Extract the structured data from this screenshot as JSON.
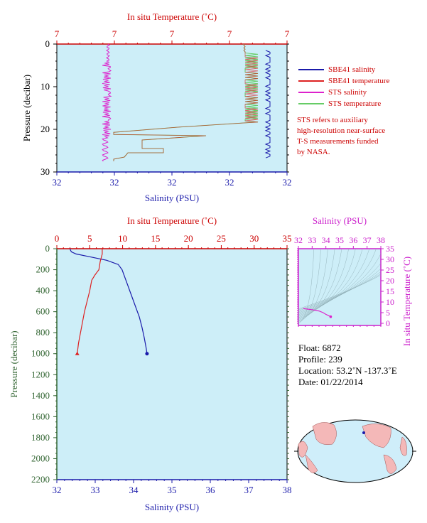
{
  "top_chart": {
    "top_axis_label": "In situ Temperature (˚C)",
    "top_ticks": [
      "7",
      "7",
      "7",
      "7",
      "7"
    ],
    "left_axis_label": "Pressure (decibar)",
    "left_ticks": [
      "0",
      "10",
      "20",
      "30"
    ],
    "bottom_axis_label": "Salinity (PSU)",
    "bottom_ticks": [
      "32",
      "32",
      "32",
      "32",
      "32"
    ]
  },
  "legend": {
    "items": [
      {
        "label": "SBE41 salinity",
        "color": "#1a1aaa"
      },
      {
        "label": "SBE41 temperature",
        "color": "#dd2222"
      },
      {
        "label": "STS salinity",
        "color": "#dd22cc"
      },
      {
        "label": "STS temperature",
        "color": "#66cc66"
      }
    ],
    "note_lines": [
      "STS refers to auxiliary",
      "high-resolution near-surface",
      "T-S measurements funded",
      "by NASA."
    ]
  },
  "main_chart": {
    "top_axis_label": "In situ Temperature (˚C)",
    "top_ticks": [
      "0",
      "5",
      "10",
      "15",
      "20",
      "25",
      "30",
      "35"
    ],
    "left_axis_label": "Pressure (decibar)",
    "left_ticks": [
      "0",
      "200",
      "400",
      "600",
      "800",
      "1000",
      "1200",
      "1400",
      "1600",
      "1800",
      "2000",
      "2200"
    ],
    "bottom_axis_label": "Salinity (PSU)",
    "bottom_ticks": [
      "32",
      "33",
      "34",
      "35",
      "36",
      "37",
      "38"
    ]
  },
  "ts_chart": {
    "top_axis_label": "Salinity (PSU)",
    "top_ticks": [
      "32",
      "33",
      "34",
      "35",
      "36",
      "37",
      "38"
    ],
    "right_axis_label": "In situ Temperature (˚C)",
    "right_ticks": [
      "0",
      "5",
      "10",
      "15",
      "20",
      "25",
      "30",
      "35"
    ]
  },
  "info": {
    "float": "Float:  6872",
    "profile": "Profile:  239",
    "location": "Location:  53.2˚N  -137.3˚E",
    "date": "Date:  01/22/2014"
  },
  "colors": {
    "plot_bg": "#cdeef8",
    "salinity": "#1a1aaa",
    "temperature": "#dd2222",
    "sts_salinity": "#dd22cc",
    "sts_temperature": "#66cc66",
    "axis_red": "#cc0000",
    "axis_blue": "#1a1aaa",
    "axis_green": "#336633",
    "axis_magenta": "#cc22cc"
  },
  "chart_data": [
    {
      "type": "line",
      "title": "",
      "xlabel": "Salinity (PSU)",
      "ylabel": "Pressure (decibar)",
      "x2label": "In situ Temperature (˚C)",
      "xlim": [
        32,
        38
      ],
      "x2lim": [
        0,
        35
      ],
      "ylim": [
        2200,
        0
      ],
      "series": [
        {
          "name": "salinity",
          "axis": "bottom",
          "color": "#1a1aaa",
          "points": [
            [
              32.35,
              0
            ],
            [
              32.35,
              10
            ],
            [
              32.38,
              30
            ],
            [
              32.5,
              50
            ],
            [
              32.9,
              80
            ],
            [
              33.3,
              110
            ],
            [
              33.6,
              150
            ],
            [
              33.7,
              200
            ],
            [
              33.75,
              250
            ],
            [
              33.85,
              350
            ],
            [
              33.95,
              450
            ],
            [
              34.05,
              550
            ],
            [
              34.15,
              650
            ],
            [
              34.22,
              750
            ],
            [
              34.28,
              850
            ],
            [
              34.33,
              950
            ],
            [
              34.35,
              1000
            ]
          ],
          "end_marker": "circle"
        },
        {
          "name": "temperature",
          "axis": "top",
          "color": "#dd2222",
          "points": [
            [
              6.9,
              0
            ],
            [
              6.9,
              50
            ],
            [
              6.6,
              120
            ],
            [
              6.4,
              200
            ],
            [
              5.8,
              250
            ],
            [
              5.3,
              300
            ],
            [
              5.0,
              400
            ],
            [
              4.6,
              500
            ],
            [
              4.2,
              600
            ],
            [
              3.9,
              700
            ],
            [
              3.6,
              800
            ],
            [
              3.3,
              900
            ],
            [
              3.1,
              1000
            ]
          ],
          "end_marker": "triangle"
        }
      ]
    },
    {
      "type": "line",
      "title": "",
      "xlabel": "Salinity (PSU)",
      "ylabel": "In situ Temperature (˚C)",
      "xlim": [
        32,
        38
      ],
      "ylim": [
        -1,
        35
      ],
      "series": [
        {
          "name": "T-S profile",
          "color": "#dd22cc",
          "points": [
            [
              32.35,
              7.0
            ],
            [
              32.5,
              6.8
            ],
            [
              33.0,
              6.4
            ],
            [
              33.5,
              5.8
            ],
            [
              33.8,
              5.0
            ],
            [
              34.0,
              4.2
            ],
            [
              34.2,
              3.6
            ],
            [
              34.35,
              3.1
            ]
          ]
        }
      ]
    }
  ]
}
